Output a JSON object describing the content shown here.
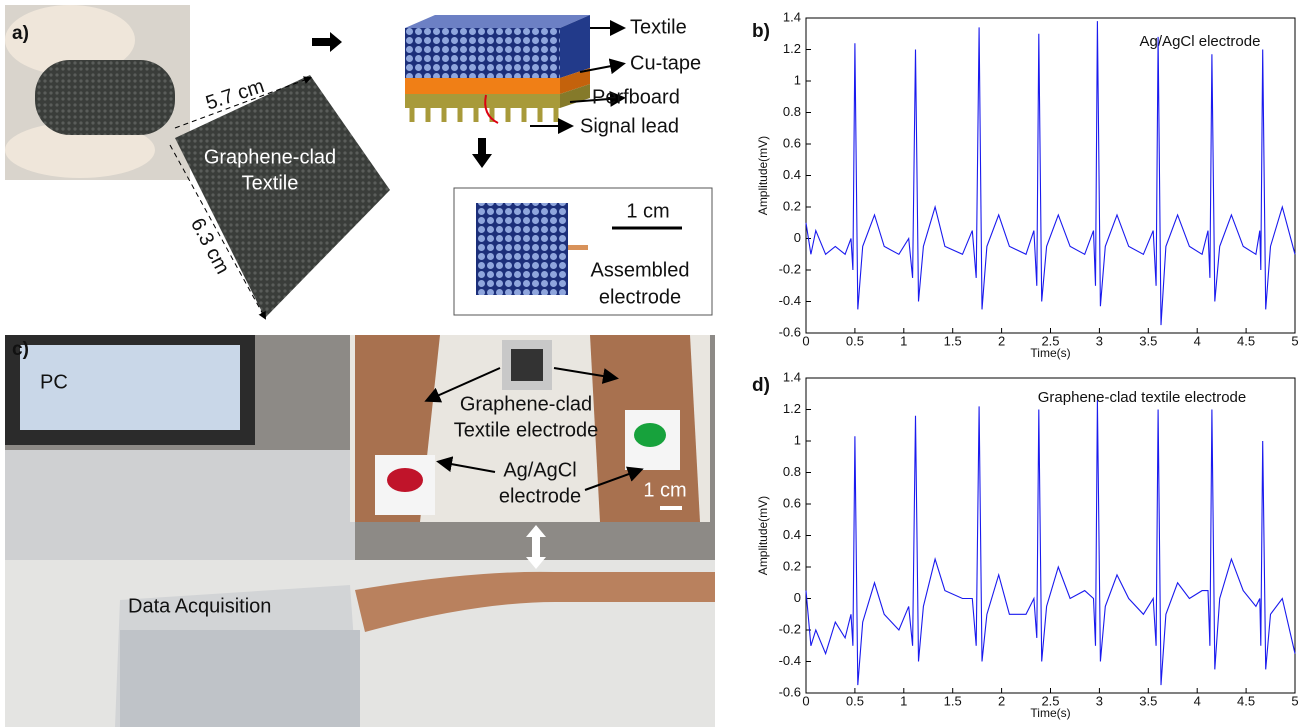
{
  "panels": {
    "a": {
      "label": "a)",
      "width_dim": "5.7 cm",
      "height_dim": "6.3 cm",
      "textile": [
        "Graphene-clad",
        "Textile"
      ],
      "layers": [
        "Textile",
        "Cu-tape",
        "Perfboard",
        "Signal lead"
      ],
      "scale": "1 cm",
      "assembled": [
        "Assembled",
        "electrode"
      ]
    },
    "c": {
      "label": "c)",
      "pc": "PC",
      "daq": "Data Acquisition",
      "textile_electrode": [
        "Graphene-clad",
        "Textile electrode"
      ],
      "agagcl_electrode": [
        "Ag/AgCl",
        "electrode"
      ],
      "scale": "1 cm"
    }
  },
  "chart_data": [
    {
      "type": "line",
      "panel_label": "b)",
      "annotation": "Ag/AgCl electrode",
      "x_label": "Time(s)",
      "y_label": "Amplitude(mV)",
      "color": "#1a1aee",
      "xlim": [
        0,
        5
      ],
      "xticks": [
        0,
        0.5,
        1,
        1.5,
        2,
        2.5,
        3,
        3.5,
        4,
        4.5,
        5
      ],
      "ylim": [
        -0.6,
        1.4
      ],
      "yticks": [
        -0.6,
        -0.4,
        -0.2,
        0,
        0.2,
        0.4,
        0.6,
        0.8,
        1,
        1.2,
        1.4
      ],
      "x": [
        0,
        0.05,
        0.1,
        0.2,
        0.3,
        0.4,
        0.46,
        0.48,
        0.5,
        0.53,
        0.58,
        0.7,
        0.8,
        0.95,
        1.05,
        1.09,
        1.12,
        1.15,
        1.2,
        1.32,
        1.42,
        1.6,
        1.7,
        1.74,
        1.77,
        1.8,
        1.85,
        1.97,
        2.08,
        2.25,
        2.33,
        2.36,
        2.38,
        2.41,
        2.46,
        2.58,
        2.7,
        2.85,
        2.94,
        2.96,
        2.98,
        3.01,
        3.06,
        3.18,
        3.3,
        3.45,
        3.55,
        3.58,
        3.6,
        3.63,
        3.68,
        3.8,
        3.92,
        4.05,
        4.11,
        4.13,
        4.15,
        4.18,
        4.23,
        4.35,
        4.47,
        4.6,
        4.64,
        4.65,
        4.67,
        4.7,
        4.75,
        4.87,
        5.0
      ],
      "values": [
        0.1,
        -0.1,
        0.05,
        -0.1,
        -0.05,
        -0.1,
        0.0,
        -0.2,
        1.24,
        -0.45,
        -0.05,
        0.15,
        -0.05,
        -0.1,
        0.0,
        -0.25,
        1.2,
        -0.4,
        -0.05,
        0.2,
        -0.05,
        -0.1,
        0.05,
        -0.25,
        1.34,
        -0.45,
        -0.05,
        0.15,
        -0.05,
        -0.1,
        0.05,
        -0.3,
        1.3,
        -0.4,
        -0.05,
        0.15,
        -0.05,
        -0.1,
        0.05,
        -0.3,
        1.38,
        -0.43,
        -0.05,
        0.15,
        -0.05,
        -0.1,
        0.05,
        -0.3,
        1.28,
        -0.55,
        -0.05,
        0.15,
        -0.05,
        -0.1,
        0.05,
        -0.25,
        1.17,
        -0.4,
        -0.05,
        0.15,
        -0.05,
        -0.1,
        0.05,
        -0.2,
        1.2,
        -0.45,
        -0.05,
        0.2,
        -0.1
      ]
    },
    {
      "type": "line",
      "panel_label": "d)",
      "annotation": "Graphene-clad textile electrode",
      "x_label": "Time(s)",
      "y_label": "Amplitude(mV)",
      "color": "#1a1aee",
      "xlim": [
        0,
        5
      ],
      "xticks": [
        0,
        0.5,
        1,
        1.5,
        2,
        2.5,
        3,
        3.5,
        4,
        4.5,
        5
      ],
      "ylim": [
        -0.6,
        1.4
      ],
      "yticks": [
        -0.6,
        -0.4,
        -0.2,
        0,
        0.2,
        0.4,
        0.6,
        0.8,
        1,
        1.2,
        1.4
      ],
      "x": [
        0,
        0.05,
        0.1,
        0.2,
        0.3,
        0.4,
        0.46,
        0.48,
        0.5,
        0.53,
        0.58,
        0.7,
        0.8,
        0.95,
        1.05,
        1.09,
        1.12,
        1.15,
        1.2,
        1.32,
        1.42,
        1.6,
        1.7,
        1.74,
        1.77,
        1.8,
        1.85,
        1.97,
        2.08,
        2.25,
        2.33,
        2.36,
        2.38,
        2.41,
        2.46,
        2.58,
        2.7,
        2.85,
        2.94,
        2.96,
        2.98,
        3.01,
        3.06,
        3.18,
        3.3,
        3.45,
        3.55,
        3.58,
        3.6,
        3.63,
        3.68,
        3.8,
        3.92,
        4.05,
        4.11,
        4.13,
        4.15,
        4.18,
        4.23,
        4.35,
        4.47,
        4.6,
        4.64,
        4.65,
        4.67,
        4.7,
        4.75,
        4.87,
        5.0
      ],
      "values": [
        0.05,
        -0.3,
        -0.2,
        -0.35,
        -0.15,
        -0.25,
        -0.1,
        -0.3,
        1.03,
        -0.55,
        -0.15,
        0.1,
        -0.1,
        -0.2,
        -0.05,
        -0.3,
        1.16,
        -0.4,
        -0.05,
        0.25,
        0.05,
        0.0,
        0.0,
        -0.3,
        1.22,
        -0.4,
        -0.1,
        0.15,
        -0.1,
        -0.1,
        0.0,
        -0.25,
        1.2,
        -0.4,
        -0.05,
        0.2,
        0.0,
        0.05,
        0.0,
        -0.3,
        1.26,
        -0.4,
        -0.05,
        0.15,
        0.0,
        -0.1,
        0.0,
        -0.3,
        1.2,
        -0.55,
        -0.1,
        0.1,
        0.0,
        0.05,
        0.05,
        -0.3,
        1.2,
        -0.45,
        0.0,
        0.25,
        0.05,
        -0.05,
        0.0,
        -0.3,
        1.0,
        -0.45,
        -0.1,
        0.0,
        -0.35
      ]
    }
  ]
}
